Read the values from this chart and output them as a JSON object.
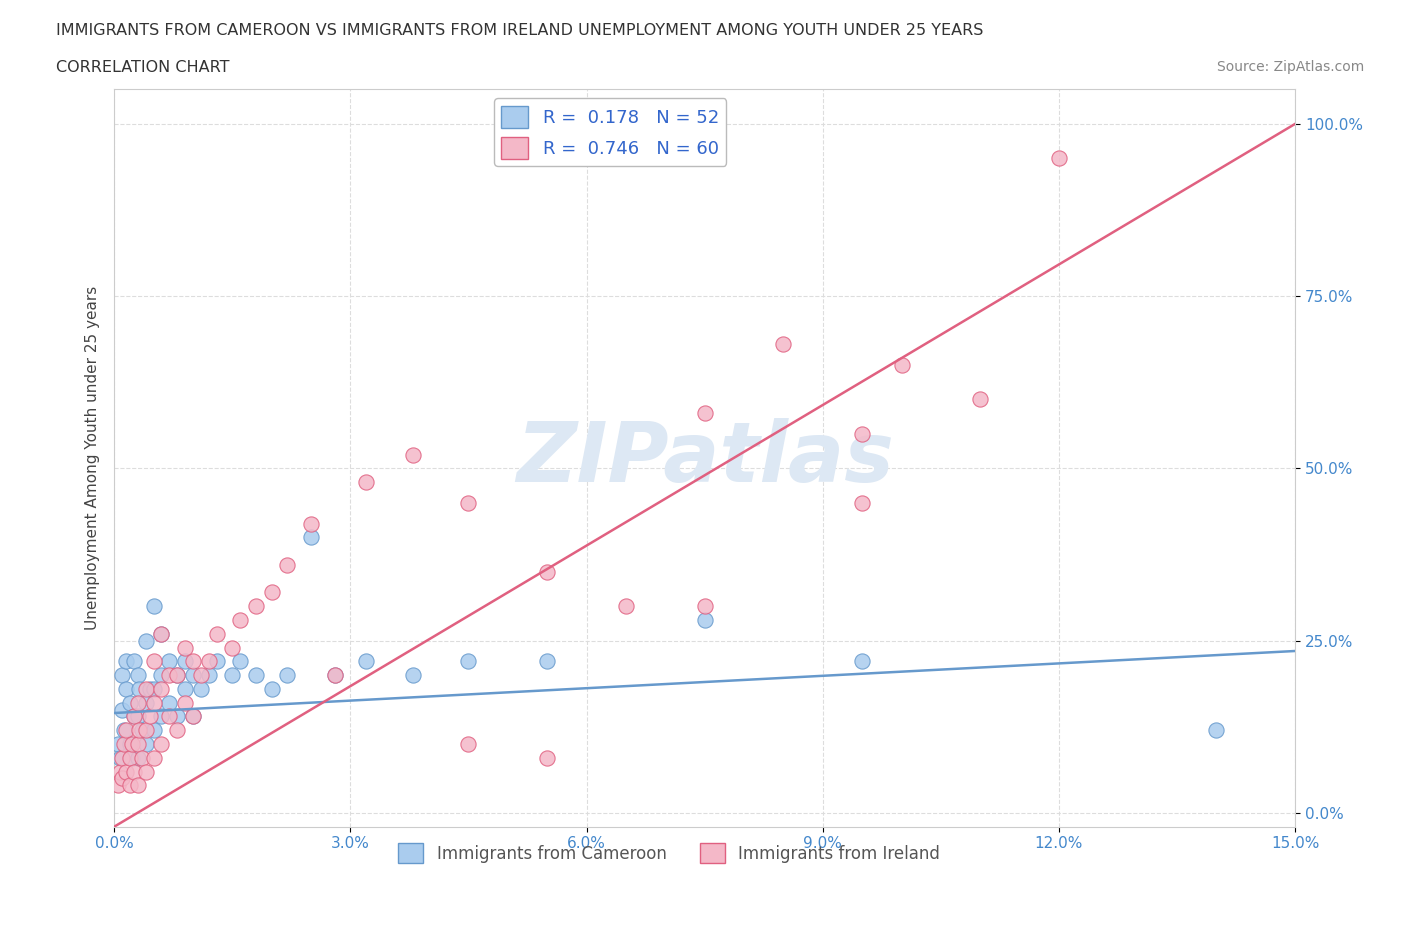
{
  "title_line1": "IMMIGRANTS FROM CAMEROON VS IMMIGRANTS FROM IRELAND UNEMPLOYMENT AMONG YOUTH UNDER 25 YEARS",
  "title_line2": "CORRELATION CHART",
  "source_text": "Source: ZipAtlas.com",
  "ylabel": "Unemployment Among Youth under 25 years",
  "xlim": [
    0.0,
    0.15
  ],
  "ylim": [
    -0.02,
    1.05
  ],
  "xticks": [
    0.0,
    0.03,
    0.06,
    0.09,
    0.12,
    0.15
  ],
  "xticklabels": [
    "0.0%",
    "3.0%",
    "6.0%",
    "9.0%",
    "12.0%",
    "15.0%"
  ],
  "yticks": [
    0.0,
    0.25,
    0.5,
    0.75,
    1.0
  ],
  "yticklabels": [
    "0.0%",
    "25.0%",
    "50.0%",
    "75.0%",
    "100.0%"
  ],
  "watermark": "ZIPatlas",
  "legend_r_entries": [
    {
      "label": "R =  0.178   N = 52",
      "facecolor": "#aaccee",
      "edgecolor": "#6699cc"
    },
    {
      "label": "R =  0.746   N = 60",
      "facecolor": "#f4b8c8",
      "edgecolor": "#e06080"
    }
  ],
  "series": [
    {
      "name": "Immigrants from Cameroon",
      "color": "#aaccee",
      "edge_color": "#6699cc",
      "x": [
        0.0005,
        0.0008,
        0.001,
        0.001,
        0.0012,
        0.0015,
        0.0015,
        0.002,
        0.002,
        0.0022,
        0.0025,
        0.0025,
        0.003,
        0.003,
        0.003,
        0.0032,
        0.0035,
        0.004,
        0.004,
        0.004,
        0.0045,
        0.005,
        0.005,
        0.005,
        0.006,
        0.006,
        0.006,
        0.007,
        0.007,
        0.008,
        0.008,
        0.009,
        0.009,
        0.01,
        0.01,
        0.011,
        0.012,
        0.013,
        0.015,
        0.016,
        0.018,
        0.02,
        0.022,
        0.025,
        0.028,
        0.032,
        0.038,
        0.045,
        0.055,
        0.075,
        0.095,
        0.14
      ],
      "y": [
        0.1,
        0.08,
        0.15,
        0.2,
        0.12,
        0.18,
        0.22,
        0.1,
        0.16,
        0.08,
        0.14,
        0.22,
        0.08,
        0.14,
        0.2,
        0.18,
        0.12,
        0.1,
        0.16,
        0.25,
        0.18,
        0.12,
        0.18,
        0.3,
        0.14,
        0.2,
        0.26,
        0.16,
        0.22,
        0.14,
        0.2,
        0.18,
        0.22,
        0.14,
        0.2,
        0.18,
        0.2,
        0.22,
        0.2,
        0.22,
        0.2,
        0.18,
        0.2,
        0.4,
        0.2,
        0.22,
        0.2,
        0.22,
        0.22,
        0.28,
        0.22,
        0.12
      ],
      "trend_x": [
        0.0,
        0.15
      ],
      "trend_y": [
        0.145,
        0.235
      ]
    },
    {
      "name": "Immigrants from Ireland",
      "color": "#f4b8c8",
      "edge_color": "#e06080",
      "x": [
        0.0005,
        0.0008,
        0.001,
        0.001,
        0.0012,
        0.0015,
        0.0015,
        0.002,
        0.002,
        0.0022,
        0.0025,
        0.0025,
        0.003,
        0.003,
        0.003,
        0.0032,
        0.0035,
        0.004,
        0.004,
        0.004,
        0.0045,
        0.005,
        0.005,
        0.005,
        0.006,
        0.006,
        0.006,
        0.007,
        0.007,
        0.008,
        0.008,
        0.009,
        0.009,
        0.01,
        0.01,
        0.011,
        0.012,
        0.013,
        0.015,
        0.016,
        0.018,
        0.02,
        0.022,
        0.025,
        0.028,
        0.032,
        0.038,
        0.045,
        0.055,
        0.075,
        0.095,
        0.1,
        0.11,
        0.12,
        0.095,
        0.085,
        0.075,
        0.065,
        0.055,
        0.045
      ],
      "y": [
        0.04,
        0.06,
        0.08,
        0.05,
        0.1,
        0.06,
        0.12,
        0.04,
        0.08,
        0.1,
        0.06,
        0.14,
        0.04,
        0.1,
        0.16,
        0.12,
        0.08,
        0.06,
        0.12,
        0.18,
        0.14,
        0.08,
        0.16,
        0.22,
        0.1,
        0.18,
        0.26,
        0.14,
        0.2,
        0.12,
        0.2,
        0.16,
        0.24,
        0.14,
        0.22,
        0.2,
        0.22,
        0.26,
        0.24,
        0.28,
        0.3,
        0.32,
        0.36,
        0.42,
        0.2,
        0.48,
        0.52,
        0.45,
        0.35,
        0.3,
        0.45,
        0.65,
        0.6,
        0.95,
        0.55,
        0.68,
        0.58,
        0.3,
        0.08,
        0.1
      ],
      "trend_x": [
        0.0,
        0.15
      ],
      "trend_y": [
        -0.02,
        1.0
      ]
    }
  ],
  "bg_color": "#ffffff",
  "grid_color": "#dddddd",
  "title_color": "#333333",
  "axis_color": "#444444",
  "tick_color": "#4488cc",
  "watermark_color": "#dde8f4",
  "legend_text_color": "#3366cc"
}
